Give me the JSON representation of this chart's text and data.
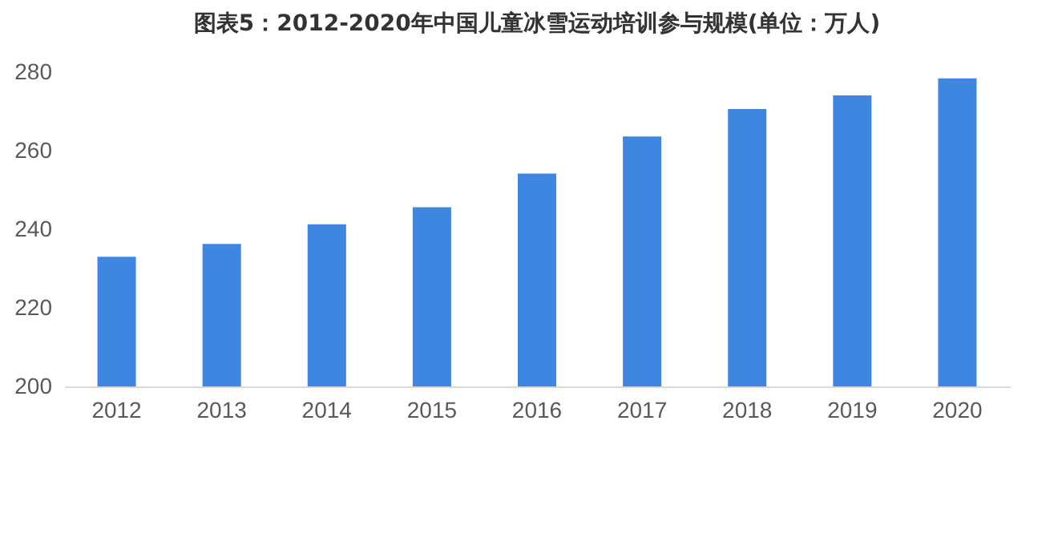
{
  "chart_data": {
    "type": "bar",
    "title": "图表5：2012-2020年中国儿童冰雪运动培训参与规模(单位：万人)",
    "categories": [
      "2012",
      "2013",
      "2014",
      "2015",
      "2016",
      "2017",
      "2018",
      "2019",
      "2020"
    ],
    "values": [
      233,
      236.3,
      241.3,
      245.6,
      254.2,
      263.6,
      270.6,
      274.1,
      278.4
    ],
    "color": "#3f86e0",
    "ylim": [
      200,
      280
    ],
    "yticks": [
      200,
      220,
      240,
      260,
      280
    ],
    "grid": false
  }
}
